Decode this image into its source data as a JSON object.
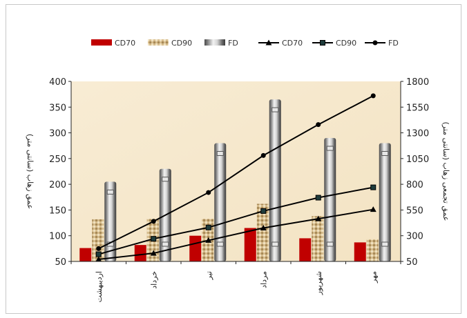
{
  "chart_data": {
    "type": "bar",
    "categories": [
      "اردیبهشت",
      "خرداد",
      "تیر",
      "مرداد",
      "شهریور",
      "مهر"
    ],
    "series": [
      {
        "name": "CD70",
        "kind": "bar",
        "axis": "left",
        "color": "#c00000",
        "values": [
          76,
          82,
          100,
          115,
          95,
          87
        ]
      },
      {
        "name": "CD90",
        "kind": "bar",
        "axis": "left",
        "color": "#c8aa78",
        "values": [
          132,
          133,
          133,
          162,
          138,
          93
        ]
      },
      {
        "name": "FD",
        "kind": "bar",
        "axis": "left",
        "color": "#9a9a9a",
        "values": [
          205,
          230,
          280,
          365,
          290,
          280
        ]
      },
      {
        "name": "CD70",
        "kind": "line",
        "axis": "right",
        "marker": "triangle",
        "values": [
          70,
          130,
          255,
          375,
          465,
          555
        ]
      },
      {
        "name": "CD90",
        "kind": "line",
        "axis": "right",
        "marker": "square",
        "values": [
          120,
          270,
          380,
          540,
          670,
          770
        ]
      },
      {
        "name": "FD",
        "kind": "line",
        "axis": "right",
        "marker": "circle",
        "values": [
          175,
          440,
          720,
          1080,
          1380,
          1660
        ]
      }
    ],
    "y_left": {
      "label": "عمق زهاب (سانتی متر)",
      "ylim": [
        50,
        400
      ],
      "ticks": [
        "50",
        "100",
        "150",
        "200",
        "250",
        "300",
        "350",
        "400"
      ]
    },
    "y_right": {
      "label": "عمق تجمعی زهاب (سانتی متر)",
      "ylim": [
        50,
        1800
      ],
      "ticks": [
        "50",
        "300",
        "550",
        "800",
        "1050",
        "1300",
        "1550",
        "1800"
      ]
    },
    "legend": {
      "position": "top",
      "entries": [
        {
          "label": "CD70",
          "icon": "bar-red"
        },
        {
          "label": "CD90",
          "icon": "bar-tan"
        },
        {
          "label": "FD",
          "icon": "bar-cylinder"
        },
        {
          "label": "CD70",
          "icon": "line-triangle"
        },
        {
          "label": "CD90",
          "icon": "line-square"
        },
        {
          "label": "FD",
          "icon": "line-circle"
        }
      ]
    },
    "plot_background": "#f6e8cc",
    "grid": false
  }
}
